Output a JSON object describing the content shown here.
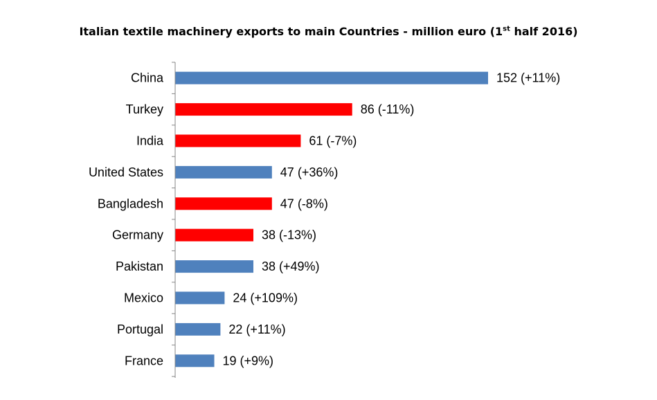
{
  "chart_data": {
    "type": "bar",
    "orientation": "horizontal",
    "title": {
      "prefix": "Italian textile machinery exports to main Countries - million euro (1",
      "superscript": "st",
      "suffix": " half 2016)"
    },
    "xlabel": "",
    "ylabel": "",
    "xlim": [
      0,
      160
    ],
    "grid": false,
    "legend": "none",
    "colors": {
      "increase": "#4f81bd",
      "decrease": "#ff0000",
      "axis": "#868686"
    },
    "categories": [
      "China",
      "Turkey",
      "India",
      "United States",
      "Bangladesh",
      "Germany",
      "Pakistan",
      "Mexico",
      "Portugal",
      "France"
    ],
    "values": [
      152,
      86,
      61,
      47,
      47,
      38,
      38,
      24,
      22,
      19
    ],
    "change_pct": [
      11,
      -11,
      -7,
      36,
      -8,
      -13,
      49,
      109,
      11,
      9
    ],
    "data_labels": [
      "152 (+11%)",
      "86 (-11%)",
      "61 (-7%)",
      "47 (+36%)",
      "47 (-8%)",
      "38 (-13%)",
      "38 (+49%)",
      "24 (+109%)",
      "22 (+11%)",
      "19 (+9%)"
    ]
  }
}
